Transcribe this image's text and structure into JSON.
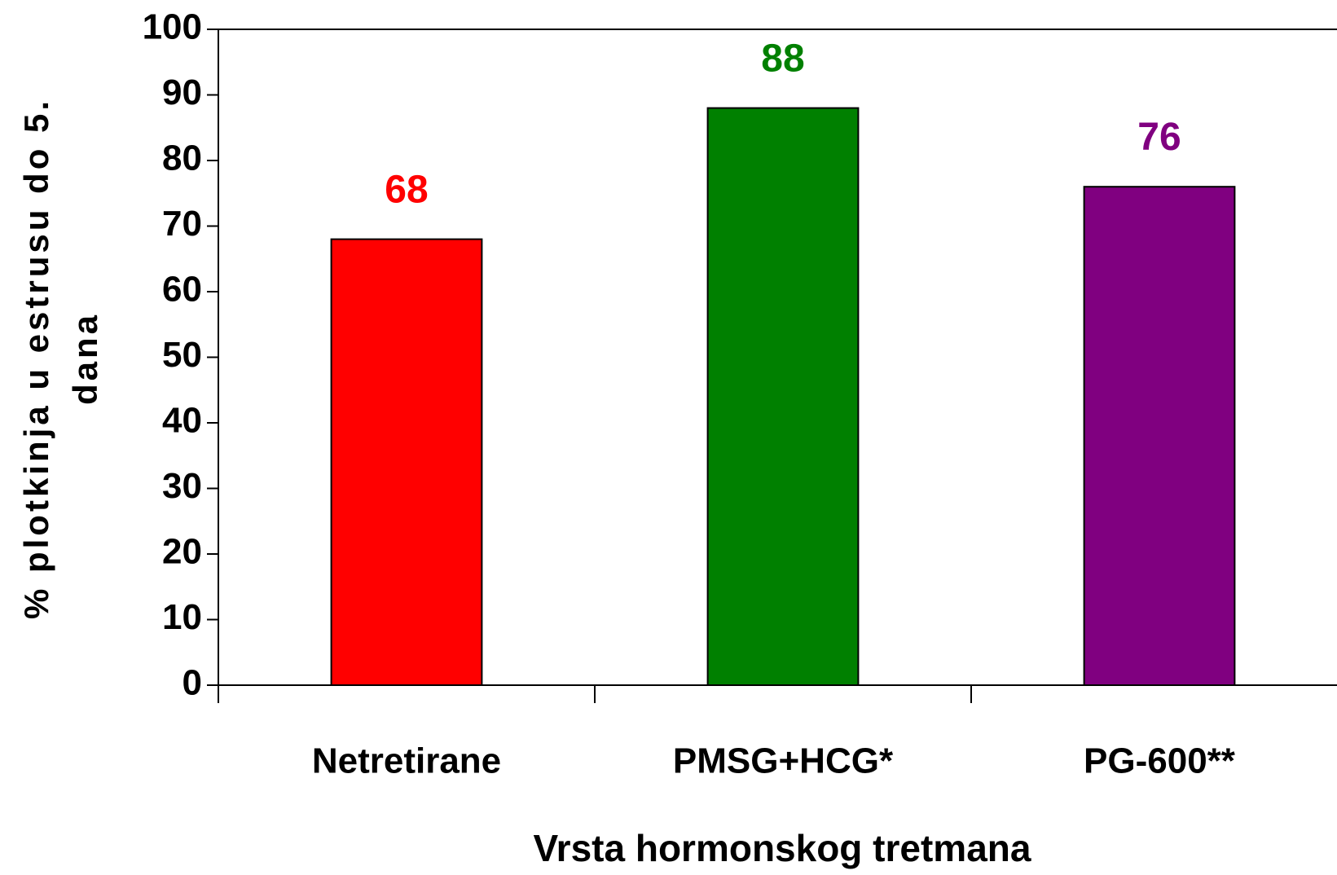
{
  "chart_data": {
    "type": "bar",
    "categories": [
      "Netretirane",
      "PMSG+HCG*",
      "PG-600**"
    ],
    "values": [
      68,
      88,
      76
    ],
    "colors": [
      "#ff0000",
      "#008000",
      "#800080"
    ],
    "xlabel": "Vrsta hormonskog tretmana",
    "ylabel": [
      "% plotkinja u estrusu do 5.",
      "dana"
    ],
    "ylim": [
      0,
      100
    ],
    "yticks": [
      0,
      10,
      20,
      30,
      40,
      50,
      60,
      70,
      80,
      90,
      100
    ],
    "grid": false
  }
}
